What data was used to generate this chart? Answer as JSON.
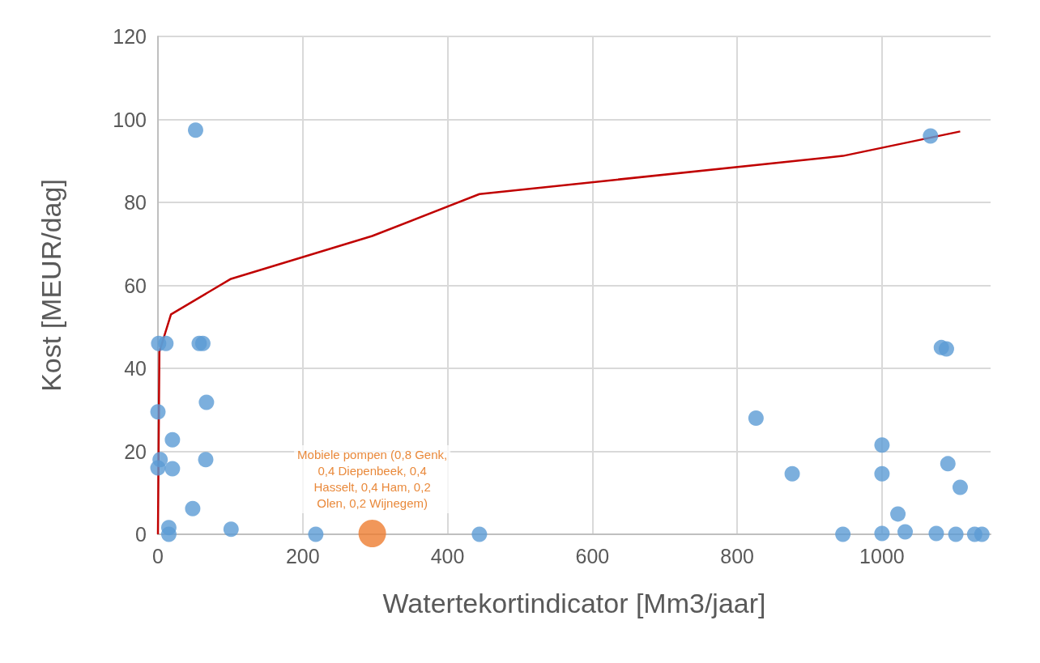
{
  "chart_data": {
    "type": "scatter",
    "xlabel": "Watertekortindicator [Mm3/jaar]",
    "ylabel": "Kost [MEUR/dag]",
    "xlim": [
      0,
      1150
    ],
    "xticks": [
      0,
      200,
      400,
      600,
      800,
      1000
    ],
    "ylim": [
      0,
      120
    ],
    "yticks": [
      0,
      20,
      40,
      60,
      80,
      100,
      120
    ],
    "grid": true,
    "marker": "circle",
    "series": [
      {
        "color": "#5b9bd5",
        "x": [
          52,
          1,
          11,
          57,
          62,
          67,
          0,
          20,
          3,
          66,
          0,
          20,
          48,
          15,
          15,
          101,
          218,
          444,
          1082,
          1089,
          826,
          1000,
          876,
          1000,
          1091,
          1108,
          1022,
          946,
          1000,
          1032,
          1075,
          1102,
          1128,
          1138,
          1067
        ],
        "values": [
          97.4,
          46,
          46,
          46,
          46,
          31.8,
          29.5,
          22.8,
          18,
          18,
          16,
          15.8,
          6.2,
          1.6,
          0,
          1.2,
          0,
          0,
          45,
          44.7,
          28,
          21.5,
          14.6,
          14.6,
          17,
          11.3,
          4.9,
          0,
          0.2,
          0.6,
          0.2,
          0,
          0,
          0,
          96
        ]
      },
      {
        "color": "#ed7d31",
        "x": [
          296
        ],
        "values": [
          0.2
        ]
      },
      {
        "type": "line",
        "color": "#c00000",
        "marker": "none",
        "line_style": "solid",
        "x": [
          0,
          2,
          18,
          100,
          296,
          444,
          946,
          1108
        ],
        "values": [
          0,
          44,
          53,
          61.5,
          71.9,
          82,
          91.2,
          97.1
        ]
      }
    ],
    "annotations": [
      {
        "text": "Mobiele pompen (0,8 Genk, 0,4 Diepenbeek, 0,4 Hasselt, 0,4 Ham, 0,2 Olen, 0,2 Wijnegem)",
        "x": 296,
        "y": 0.2
      }
    ]
  }
}
